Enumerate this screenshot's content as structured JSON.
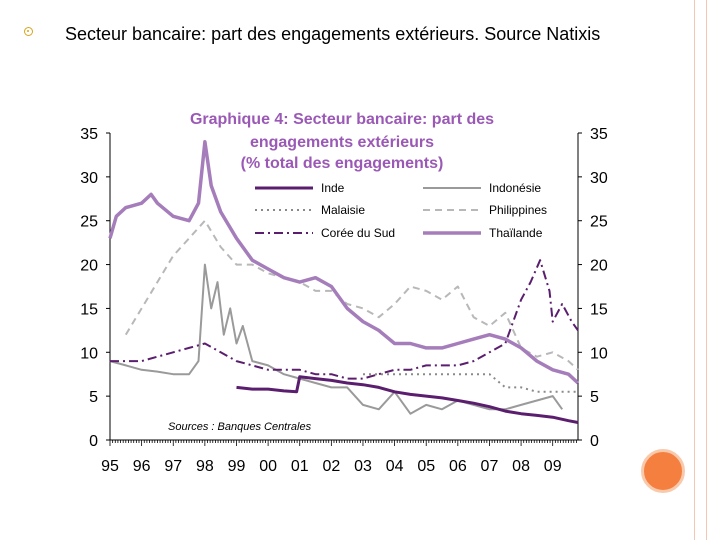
{
  "slide": {
    "heading": "Secteur bancaire: part des engagements extérieurs. Source Natixis",
    "bullet_icon": "ring-bullet-icon",
    "accent_color": "#f57f3f"
  },
  "chart_data": {
    "type": "line",
    "title_lines": [
      "Graphique 4: Secteur bancaire: part des",
      "engagements extérieurs",
      "(% total des engagements)"
    ],
    "source": "Sources : Banques Centrales",
    "x_tick_labels": [
      "95",
      "96",
      "97",
      "98",
      "99",
      "00",
      "01",
      "02",
      "03",
      "04",
      "05",
      "06",
      "07",
      "08",
      "09"
    ],
    "xlim": [
      1995,
      2009.8
    ],
    "ylim": [
      0,
      35
    ],
    "y_ticks": [
      0,
      5,
      10,
      15,
      20,
      25,
      30,
      35
    ],
    "y_tick_labels": [
      "0",
      "5",
      "10",
      "15",
      "20",
      "25",
      "30",
      "35"
    ],
    "grid": false,
    "legend_placement": "top-right",
    "series": [
      {
        "name": "Inde",
        "color": "#5b1e6e",
        "dash": "solid",
        "x": [
          1995.0,
          1995.5,
          1996.0,
          1996.5,
          1997.0,
          1997.5,
          1998.0,
          1998.5,
          1999.0,
          1999.5,
          2000.0,
          2000.5,
          2000.9,
          2001.0,
          2001.5,
          2002.0,
          2002.5,
          2003.0,
          2003.5,
          2004.0,
          2004.5,
          2005.0,
          2005.5,
          2006.0,
          2006.5,
          2007.0,
          2007.5,
          2008.0,
          2008.5,
          2009.0,
          2009.5,
          2009.8
        ],
        "y": [
          null,
          null,
          null,
          null,
          null,
          null,
          null,
          null,
          6.0,
          5.8,
          5.8,
          5.6,
          5.5,
          7.2,
          7.0,
          6.8,
          6.5,
          6.3,
          6.0,
          5.5,
          5.2,
          5.0,
          4.8,
          4.5,
          4.2,
          3.8,
          3.3,
          3.0,
          2.8,
          2.6,
          2.2,
          2.0
        ]
      },
      {
        "name": "Indonésie",
        "color": "#9a9a9a",
        "dash": "solid",
        "x": [
          1995.0,
          1995.5,
          1996.0,
          1996.5,
          1997.0,
          1997.5,
          1997.8,
          1998.0,
          1998.2,
          1998.4,
          1998.6,
          1998.8,
          1999.0,
          1999.2,
          1999.5,
          2000.0,
          2000.5,
          2001.0,
          2001.5,
          2002.0,
          2002.5,
          2003.0,
          2003.5,
          2004.0,
          2004.5,
          2005.0,
          2005.5,
          2006.0,
          2006.5,
          2007.0,
          2007.5,
          2008.0,
          2008.5,
          2009.0,
          2009.3
        ],
        "y": [
          9.0,
          8.5,
          8.0,
          7.8,
          7.5,
          7.5,
          9.0,
          20.0,
          15.0,
          18.0,
          12.0,
          15.0,
          11.0,
          13.0,
          9.0,
          8.5,
          7.5,
          7.0,
          6.5,
          6.0,
          6.0,
          4.0,
          3.5,
          5.5,
          3.0,
          4.0,
          3.5,
          4.5,
          4.0,
          3.5,
          3.5,
          4.0,
          4.5,
          5.0,
          3.5
        ]
      },
      {
        "name": "Malaisie",
        "color": "#8a8a8a",
        "dash": "dotted",
        "x": [
          1995.0,
          1995.5,
          1996.0,
          1996.5,
          1997.0,
          1997.5,
          1998.0,
          1998.5,
          1999.0,
          1999.5,
          2000.0,
          2000.5,
          2001.0,
          2001.5,
          2002.0,
          2002.5,
          2003.0,
          2003.5,
          2004.0,
          2004.5,
          2005.0,
          2005.5,
          2006.0,
          2006.5,
          2007.0,
          2007.5,
          2008.0,
          2008.5,
          2009.0,
          2009.5,
          2009.8
        ],
        "y": [
          null,
          null,
          null,
          null,
          null,
          null,
          null,
          null,
          null,
          null,
          null,
          null,
          null,
          null,
          null,
          null,
          7.5,
          7.5,
          7.5,
          7.5,
          7.5,
          7.5,
          7.5,
          7.5,
          7.5,
          6.0,
          6.0,
          5.5,
          5.5,
          5.5,
          5.5
        ]
      },
      {
        "name": "Philippines",
        "color": "#b8b8b8",
        "dash": "dashed",
        "x": [
          1995.0,
          1995.5,
          1996.0,
          1996.5,
          1997.0,
          1997.5,
          1998.0,
          1998.5,
          1999.0,
          1999.5,
          2000.0,
          2000.5,
          2001.0,
          2001.5,
          2002.0,
          2002.5,
          2003.0,
          2003.5,
          2004.0,
          2004.5,
          2005.0,
          2005.5,
          2006.0,
          2006.5,
          2007.0,
          2007.5,
          2008.0,
          2008.5,
          2009.0,
          2009.5,
          2009.8
        ],
        "y": [
          null,
          12.0,
          15.0,
          18.0,
          21.0,
          23.0,
          25.0,
          22.0,
          20.0,
          20.0,
          19.0,
          18.5,
          18.0,
          17.0,
          17.0,
          15.5,
          15.0,
          14.0,
          15.5,
          17.5,
          17.0,
          16.0,
          17.5,
          14.0,
          13.0,
          14.5,
          10.5,
          9.5,
          10.0,
          9.0,
          8.0
        ]
      },
      {
        "name": "Corée du Sud",
        "color": "#5b1e6e",
        "dash": "dashdot",
        "x": [
          1995.0,
          1995.5,
          1996.0,
          1996.5,
          1997.0,
          1997.5,
          1998.0,
          1998.5,
          1999.0,
          1999.5,
          2000.0,
          2000.5,
          2001.0,
          2001.5,
          2002.0,
          2002.5,
          2003.0,
          2003.5,
          2004.0,
          2004.5,
          2005.0,
          2005.5,
          2006.0,
          2006.5,
          2007.0,
          2007.5,
          2008.0,
          2008.3,
          2008.6,
          2008.9,
          2009.0,
          2009.3,
          2009.6,
          2009.8
        ],
        "y": [
          9.0,
          9.0,
          9.0,
          9.5,
          10.0,
          10.5,
          11.0,
          10.0,
          9.0,
          8.5,
          8.0,
          8.0,
          8.0,
          7.5,
          7.5,
          7.0,
          7.0,
          7.5,
          8.0,
          8.0,
          8.5,
          8.5,
          8.5,
          9.0,
          10.0,
          11.0,
          16.0,
          18.0,
          20.5,
          17.0,
          13.5,
          15.5,
          13.5,
          12.5
        ]
      },
      {
        "name": "Thaïlande",
        "color": "#a57dbb",
        "dash": "solid",
        "x": [
          1995.0,
          1995.2,
          1995.5,
          1996.0,
          1996.3,
          1996.5,
          1997.0,
          1997.5,
          1997.8,
          1998.0,
          1998.2,
          1998.5,
          1999.0,
          1999.5,
          2000.0,
          2000.5,
          2001.0,
          2001.5,
          2002.0,
          2002.5,
          2003.0,
          2003.5,
          2004.0,
          2004.5,
          2005.0,
          2005.5,
          2006.0,
          2006.5,
          2007.0,
          2007.5,
          2008.0,
          2008.5,
          2009.0,
          2009.5,
          2009.8
        ],
        "y": [
          23.0,
          25.5,
          26.5,
          27.0,
          28.0,
          27.0,
          25.5,
          25.0,
          27.0,
          34.0,
          29.0,
          26.0,
          23.0,
          20.5,
          19.5,
          18.5,
          18.0,
          18.5,
          17.5,
          15.0,
          13.5,
          12.5,
          11.0,
          11.0,
          10.5,
          10.5,
          11.0,
          11.5,
          12.0,
          11.5,
          10.5,
          9.0,
          8.0,
          7.5,
          6.5
        ]
      }
    ]
  }
}
